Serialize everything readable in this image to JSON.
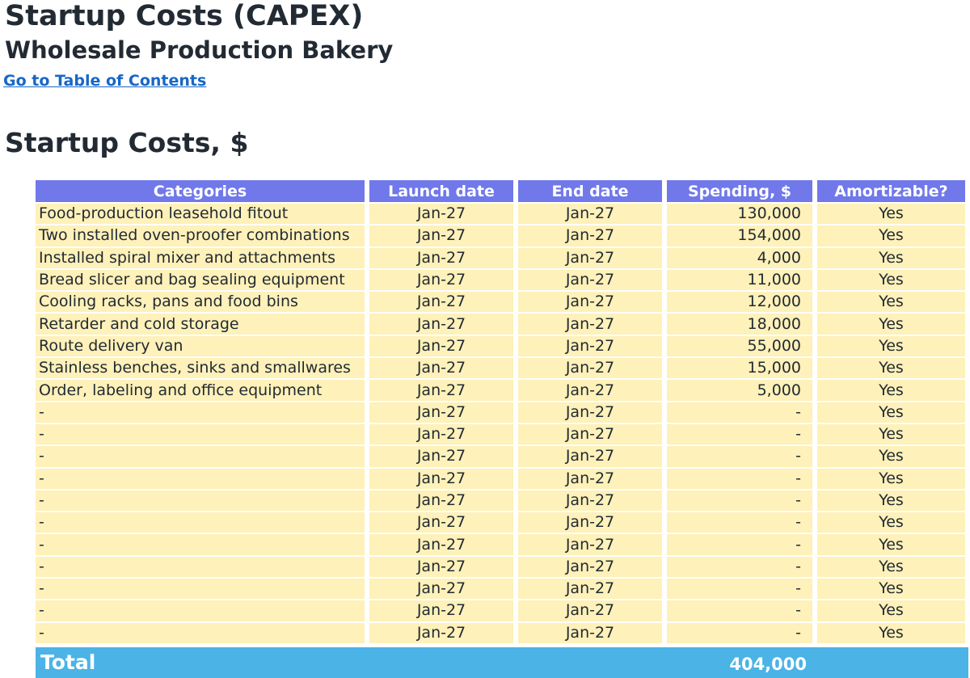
{
  "header": {
    "title": "Startup Costs (CAPEX)",
    "subtitle": "Wholesale Production Bakery",
    "toc_link": "Go to Table of Contents"
  },
  "section": {
    "title": "Startup Costs, $"
  },
  "table": {
    "columns": [
      "Categories",
      "Launch date",
      "End date",
      "Spending, $",
      "Amortizable?"
    ],
    "rows": [
      {
        "category": "Food-production leasehold fitout",
        "launch": "Jan-27",
        "end": "Jan-27",
        "spending": "130,000",
        "amortizable": "Yes"
      },
      {
        "category": "Two installed oven-proofer combinations",
        "launch": "Jan-27",
        "end": "Jan-27",
        "spending": "154,000",
        "amortizable": "Yes"
      },
      {
        "category": "Installed spiral mixer and attachments",
        "launch": "Jan-27",
        "end": "Jan-27",
        "spending": "4,000",
        "amortizable": "Yes"
      },
      {
        "category": "Bread slicer and bag sealing equipment",
        "launch": "Jan-27",
        "end": "Jan-27",
        "spending": "11,000",
        "amortizable": "Yes"
      },
      {
        "category": "Cooling racks, pans and food bins",
        "launch": "Jan-27",
        "end": "Jan-27",
        "spending": "12,000",
        "amortizable": "Yes"
      },
      {
        "category": "Retarder and cold storage",
        "launch": "Jan-27",
        "end": "Jan-27",
        "spending": "18,000",
        "amortizable": "Yes"
      },
      {
        "category": "Route delivery van",
        "launch": "Jan-27",
        "end": "Jan-27",
        "spending": "55,000",
        "amortizable": "Yes"
      },
      {
        "category": "Stainless benches, sinks and smallwares",
        "launch": "Jan-27",
        "end": "Jan-27",
        "spending": "15,000",
        "amortizable": "Yes"
      },
      {
        "category": "Order, labeling and office equipment",
        "launch": "Jan-27",
        "end": "Jan-27",
        "spending": "5,000",
        "amortizable": "Yes"
      },
      {
        "category": "-",
        "launch": "Jan-27",
        "end": "Jan-27",
        "spending": "-",
        "amortizable": "Yes"
      },
      {
        "category": "-",
        "launch": "Jan-27",
        "end": "Jan-27",
        "spending": "-",
        "amortizable": "Yes"
      },
      {
        "category": "-",
        "launch": "Jan-27",
        "end": "Jan-27",
        "spending": "-",
        "amortizable": "Yes"
      },
      {
        "category": "-",
        "launch": "Jan-27",
        "end": "Jan-27",
        "spending": "-",
        "amortizable": "Yes"
      },
      {
        "category": "-",
        "launch": "Jan-27",
        "end": "Jan-27",
        "spending": "-",
        "amortizable": "Yes"
      },
      {
        "category": "-",
        "launch": "Jan-27",
        "end": "Jan-27",
        "spending": "-",
        "amortizable": "Yes"
      },
      {
        "category": "-",
        "launch": "Jan-27",
        "end": "Jan-27",
        "spending": "-",
        "amortizable": "Yes"
      },
      {
        "category": "-",
        "launch": "Jan-27",
        "end": "Jan-27",
        "spending": "-",
        "amortizable": "Yes"
      },
      {
        "category": "-",
        "launch": "Jan-27",
        "end": "Jan-27",
        "spending": "-",
        "amortizable": "Yes"
      },
      {
        "category": "-",
        "launch": "Jan-27",
        "end": "Jan-27",
        "spending": "-",
        "amortizable": "Yes"
      },
      {
        "category": "-",
        "launch": "Jan-27",
        "end": "Jan-27",
        "spending": "-",
        "amortizable": "Yes"
      }
    ],
    "total_label": "Total",
    "total_value": "404,000"
  },
  "colors": {
    "header_bg": "#7078ea",
    "cell_bg": "#fef1b9",
    "total_bg": "#4bb3e6",
    "link": "#1767c6",
    "text": "#222a33"
  }
}
